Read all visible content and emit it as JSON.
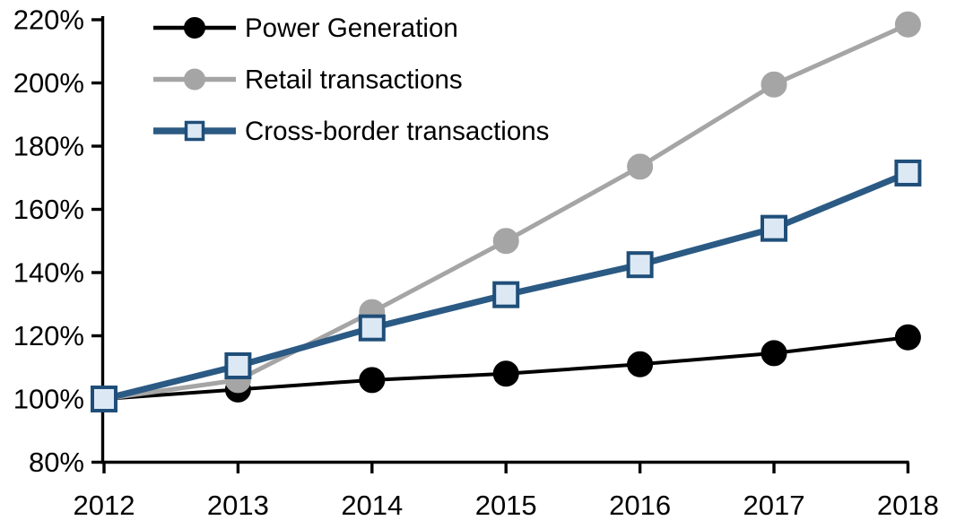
{
  "chart_data": {
    "type": "line",
    "title": "",
    "xlabel": "",
    "ylabel": "",
    "categories": [
      "2012",
      "2013",
      "2014",
      "2015",
      "2016",
      "2017",
      "2018"
    ],
    "series": [
      {
        "name": "Power Generation",
        "slug": "power-generation",
        "color": "#000000",
        "thickness": 4,
        "marker": {
          "shape": "circle",
          "fill": "#000000",
          "stroke": "#000000"
        },
        "values": [
          100,
          103,
          106,
          108,
          111,
          114.5,
          119.5
        ]
      },
      {
        "name": "Retail transactions",
        "slug": "retail-transactions",
        "color": "#A5A5A5",
        "thickness": 5,
        "marker": {
          "shape": "circle",
          "fill": "#A5A5A5",
          "stroke": "#A5A5A5"
        },
        "values": [
          100,
          106,
          127.5,
          150,
          173.5,
          199.5,
          218.5
        ]
      },
      {
        "name": "Cross-border transactions",
        "slug": "cross-border-transactions",
        "color": "#2B5A84",
        "thickness": 7,
        "marker": {
          "shape": "square",
          "fill": "#DCE9F5",
          "stroke": "#1F4E79"
        },
        "values": [
          100,
          110.5,
          122.5,
          133,
          142.5,
          154,
          171.5
        ]
      }
    ],
    "ylim": [
      80,
      220
    ],
    "ytick_step": 20,
    "ytick_labels": [
      "80%",
      "100%",
      "120%",
      "140%",
      "160%",
      "180%",
      "200%",
      "220%"
    ],
    "xtick_labels": [
      "2012",
      "2013",
      "2014",
      "2015",
      "2016",
      "2017",
      "2018"
    ],
    "grid": false,
    "legend_position": "top-left",
    "axis_color": "#000000",
    "background_color": "#FFFFFF"
  }
}
